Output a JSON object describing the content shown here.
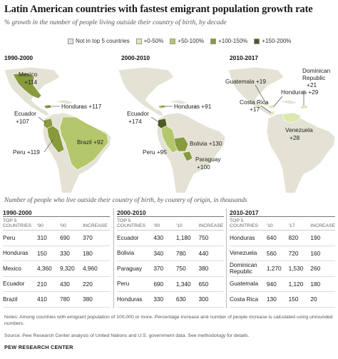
{
  "header": {
    "title": "Latin American countries with fastest emigrant population growth rate",
    "subtitle": "% growth in the number of people living outside their country of birth, by decade"
  },
  "legend": [
    {
      "label": "Not in top 5 countries",
      "color": "#e4e2d4"
    },
    {
      "label": "+0-50%",
      "color": "#dde7b0"
    },
    {
      "label": "+50-100%",
      "color": "#b4c76a"
    },
    {
      "label": "+100-150%",
      "color": "#879a3c"
    },
    {
      "label": "+150-200%",
      "color": "#4f5a22"
    }
  ],
  "colors": {
    "land": "#e4e2d4",
    "border": "#ffffff",
    "leader": "#333333"
  },
  "chart_data": {
    "type": "table",
    "maps": [
      {
        "period": "1990-2000",
        "labels": [
          {
            "text": "Mexico",
            "sub": "+114"
          },
          {
            "text": "Honduras +117"
          },
          {
            "text": "Ecuador",
            "sub": "+107"
          },
          {
            "text": "Brazil +92"
          },
          {
            "text": "Peru +119"
          }
        ]
      },
      {
        "period": "2000-2010",
        "labels": [
          {
            "text": "Honduras +91"
          },
          {
            "text": "Ecuador",
            "sub": "+174"
          },
          {
            "text": "Bolivia +130"
          },
          {
            "text": "Peru +95"
          },
          {
            "text": "Paraguay",
            "sub": "+100"
          }
        ]
      },
      {
        "period": "2010-2017",
        "labels": [
          {
            "text": "Guatemala +19"
          },
          {
            "text": "Dominican",
            "sub": "Republic",
            "sub2": "+21"
          },
          {
            "text": "Costa Rica",
            "sub": "+17"
          },
          {
            "text": "Honduras +29"
          },
          {
            "text": "Venezuela",
            "sub": "+28"
          }
        ]
      }
    ],
    "table_caption": "Number of people who live outside their country of birth, by country of origin, in thousands",
    "tables": [
      {
        "period": "1990-2000",
        "top5_label": "TOP 5 COUNTRIES",
        "columns": [
          "'90",
          "'00",
          "INCREASE"
        ],
        "rows": [
          {
            "country": "Peru",
            "start": "310",
            "end": "690",
            "increase": "370"
          },
          {
            "country": "Honduras",
            "start": "150",
            "end": "330",
            "increase": "180"
          },
          {
            "country": "Mexico",
            "start": "4,360",
            "end": "9,320",
            "increase": "4,960"
          },
          {
            "country": "Ecuador",
            "start": "210",
            "end": "430",
            "increase": "220"
          },
          {
            "country": "Brazil",
            "start": "410",
            "end": "780",
            "increase": "380"
          }
        ]
      },
      {
        "period": "2000-2010",
        "top5_label": "TOP 5 COUNTRIES",
        "columns": [
          "'00",
          "'10",
          "INCREASE"
        ],
        "rows": [
          {
            "country": "Ecuador",
            "start": "430",
            "end": "1,180",
            "increase": "750"
          },
          {
            "country": "Bolivia",
            "start": "340",
            "end": "780",
            "increase": "440"
          },
          {
            "country": "Paraguay",
            "start": "370",
            "end": "750",
            "increase": "380"
          },
          {
            "country": "Peru",
            "start": "690",
            "end": "1,340",
            "increase": "650"
          },
          {
            "country": "Honduras",
            "start": "330",
            "end": "630",
            "increase": "300"
          }
        ]
      },
      {
        "period": "2010-2017",
        "top5_label": "TOP 5 COUNTRIES",
        "columns": [
          "'10",
          "'17",
          "INCREASE"
        ],
        "rows": [
          {
            "country": "Honduras",
            "start": "640",
            "end": "820",
            "increase": "190"
          },
          {
            "country": "Venezuela",
            "start": "560",
            "end": "720",
            "increase": "160"
          },
          {
            "country": "Dominican Republic",
            "start": "1,270",
            "end": "1,530",
            "increase": "260"
          },
          {
            "country": "Guatemala",
            "start": "940",
            "end": "1,120",
            "increase": "180"
          },
          {
            "country": "Costa Rica",
            "start": "130",
            "end": "150",
            "increase": "20"
          }
        ]
      }
    ]
  },
  "footer": {
    "notes": "Notes: Among countries with emigrant population of 100,000 or more. Percentage increase and number of people increase is calculated using unrounded numbers.",
    "source": "Source: Pew Research Center analysis of United Nations and U.S. government data. See methodology for details.",
    "brand": "PEW RESEARCH CENTER"
  }
}
